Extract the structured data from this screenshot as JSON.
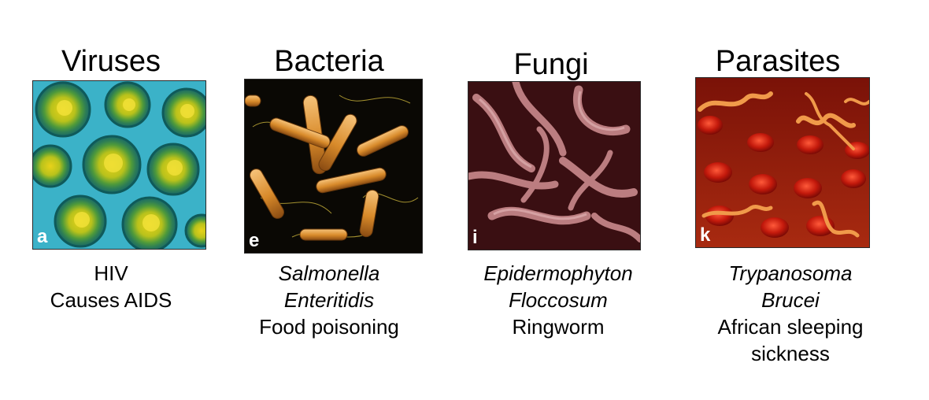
{
  "panels": [
    {
      "title": "Viruses",
      "panel_letter": "a",
      "caption_lines": [
        {
          "text": "HIV",
          "italic": false
        },
        {
          "text": "Causes AIDS",
          "italic": false
        }
      ]
    },
    {
      "title": "Bacteria",
      "panel_letter": "e",
      "caption_lines": [
        {
          "text": "Salmonella",
          "italic": true
        },
        {
          "text": "Enteritidis",
          "italic": true
        },
        {
          "text": "Food poisoning",
          "italic": false
        }
      ]
    },
    {
      "title": "Fungi",
      "panel_letter": "i",
      "caption_lines": [
        {
          "text": "Epidermophyton",
          "italic": true
        },
        {
          "text": "Floccosum",
          "italic": true
        },
        {
          "text": "Ringworm",
          "italic": false
        }
      ]
    },
    {
      "title": "Parasites",
      "panel_letter": "k",
      "caption_lines": [
        {
          "text": "Trypanosoma",
          "italic": true
        },
        {
          "text": "Brucei",
          "italic": true
        },
        {
          "text": "African sleeping",
          "italic": false
        },
        {
          "text": "sickness",
          "italic": false
        }
      ]
    }
  ]
}
